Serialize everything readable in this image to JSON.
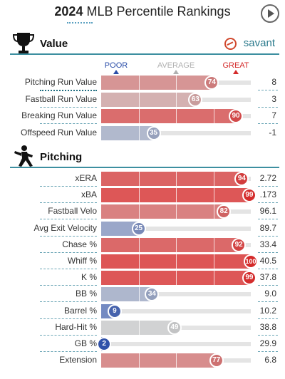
{
  "header": {
    "title_year": "2024",
    "title_rest": "MLB Percentile Rankings"
  },
  "value_section": {
    "title": "Value",
    "brand": "savant",
    "scale": {
      "poor": "POOR",
      "average": "AVERAGE",
      "great": "GREAT"
    }
  },
  "value_rows": [
    {
      "name": "Pitching Run Value",
      "percentile": 74,
      "stat": "8"
    },
    {
      "name": "Fastball Run Value",
      "percentile": 63,
      "stat": "3"
    },
    {
      "name": "Breaking Run Value",
      "percentile": 90,
      "stat": "7"
    },
    {
      "name": "Offspeed Run Value",
      "percentile": 35,
      "stat": "-1"
    }
  ],
  "pitching_section": {
    "title": "Pitching"
  },
  "pitching_rows": [
    {
      "name": "xERA",
      "percentile": 94,
      "stat": "2.72"
    },
    {
      "name": "xBA",
      "percentile": 99,
      "stat": ".173"
    },
    {
      "name": "Fastball Velo",
      "percentile": 82,
      "stat": "96.1"
    },
    {
      "name": "Avg Exit Velocity",
      "percentile": 25,
      "stat": "89.7"
    },
    {
      "name": "Chase %",
      "percentile": 92,
      "stat": "33.4"
    },
    {
      "name": "Whiff %",
      "percentile": 100,
      "stat": "40.5"
    },
    {
      "name": "K %",
      "percentile": 99,
      "stat": "37.8"
    },
    {
      "name": "BB %",
      "percentile": 34,
      "stat": "9.0"
    },
    {
      "name": "Barrel %",
      "percentile": 9,
      "stat": "10.2"
    },
    {
      "name": "Hard-Hit %",
      "percentile": 49,
      "stat": "38.8"
    },
    {
      "name": "GB %",
      "percentile": 2,
      "stat": "29.9"
    },
    {
      "name": "Extension",
      "percentile": 77,
      "stat": "6.8"
    }
  ],
  "colors": {
    "poor": "#2a4da8",
    "average": "#c5c5c5",
    "great": "#d42a2a",
    "accent": "#3d8fa0"
  }
}
